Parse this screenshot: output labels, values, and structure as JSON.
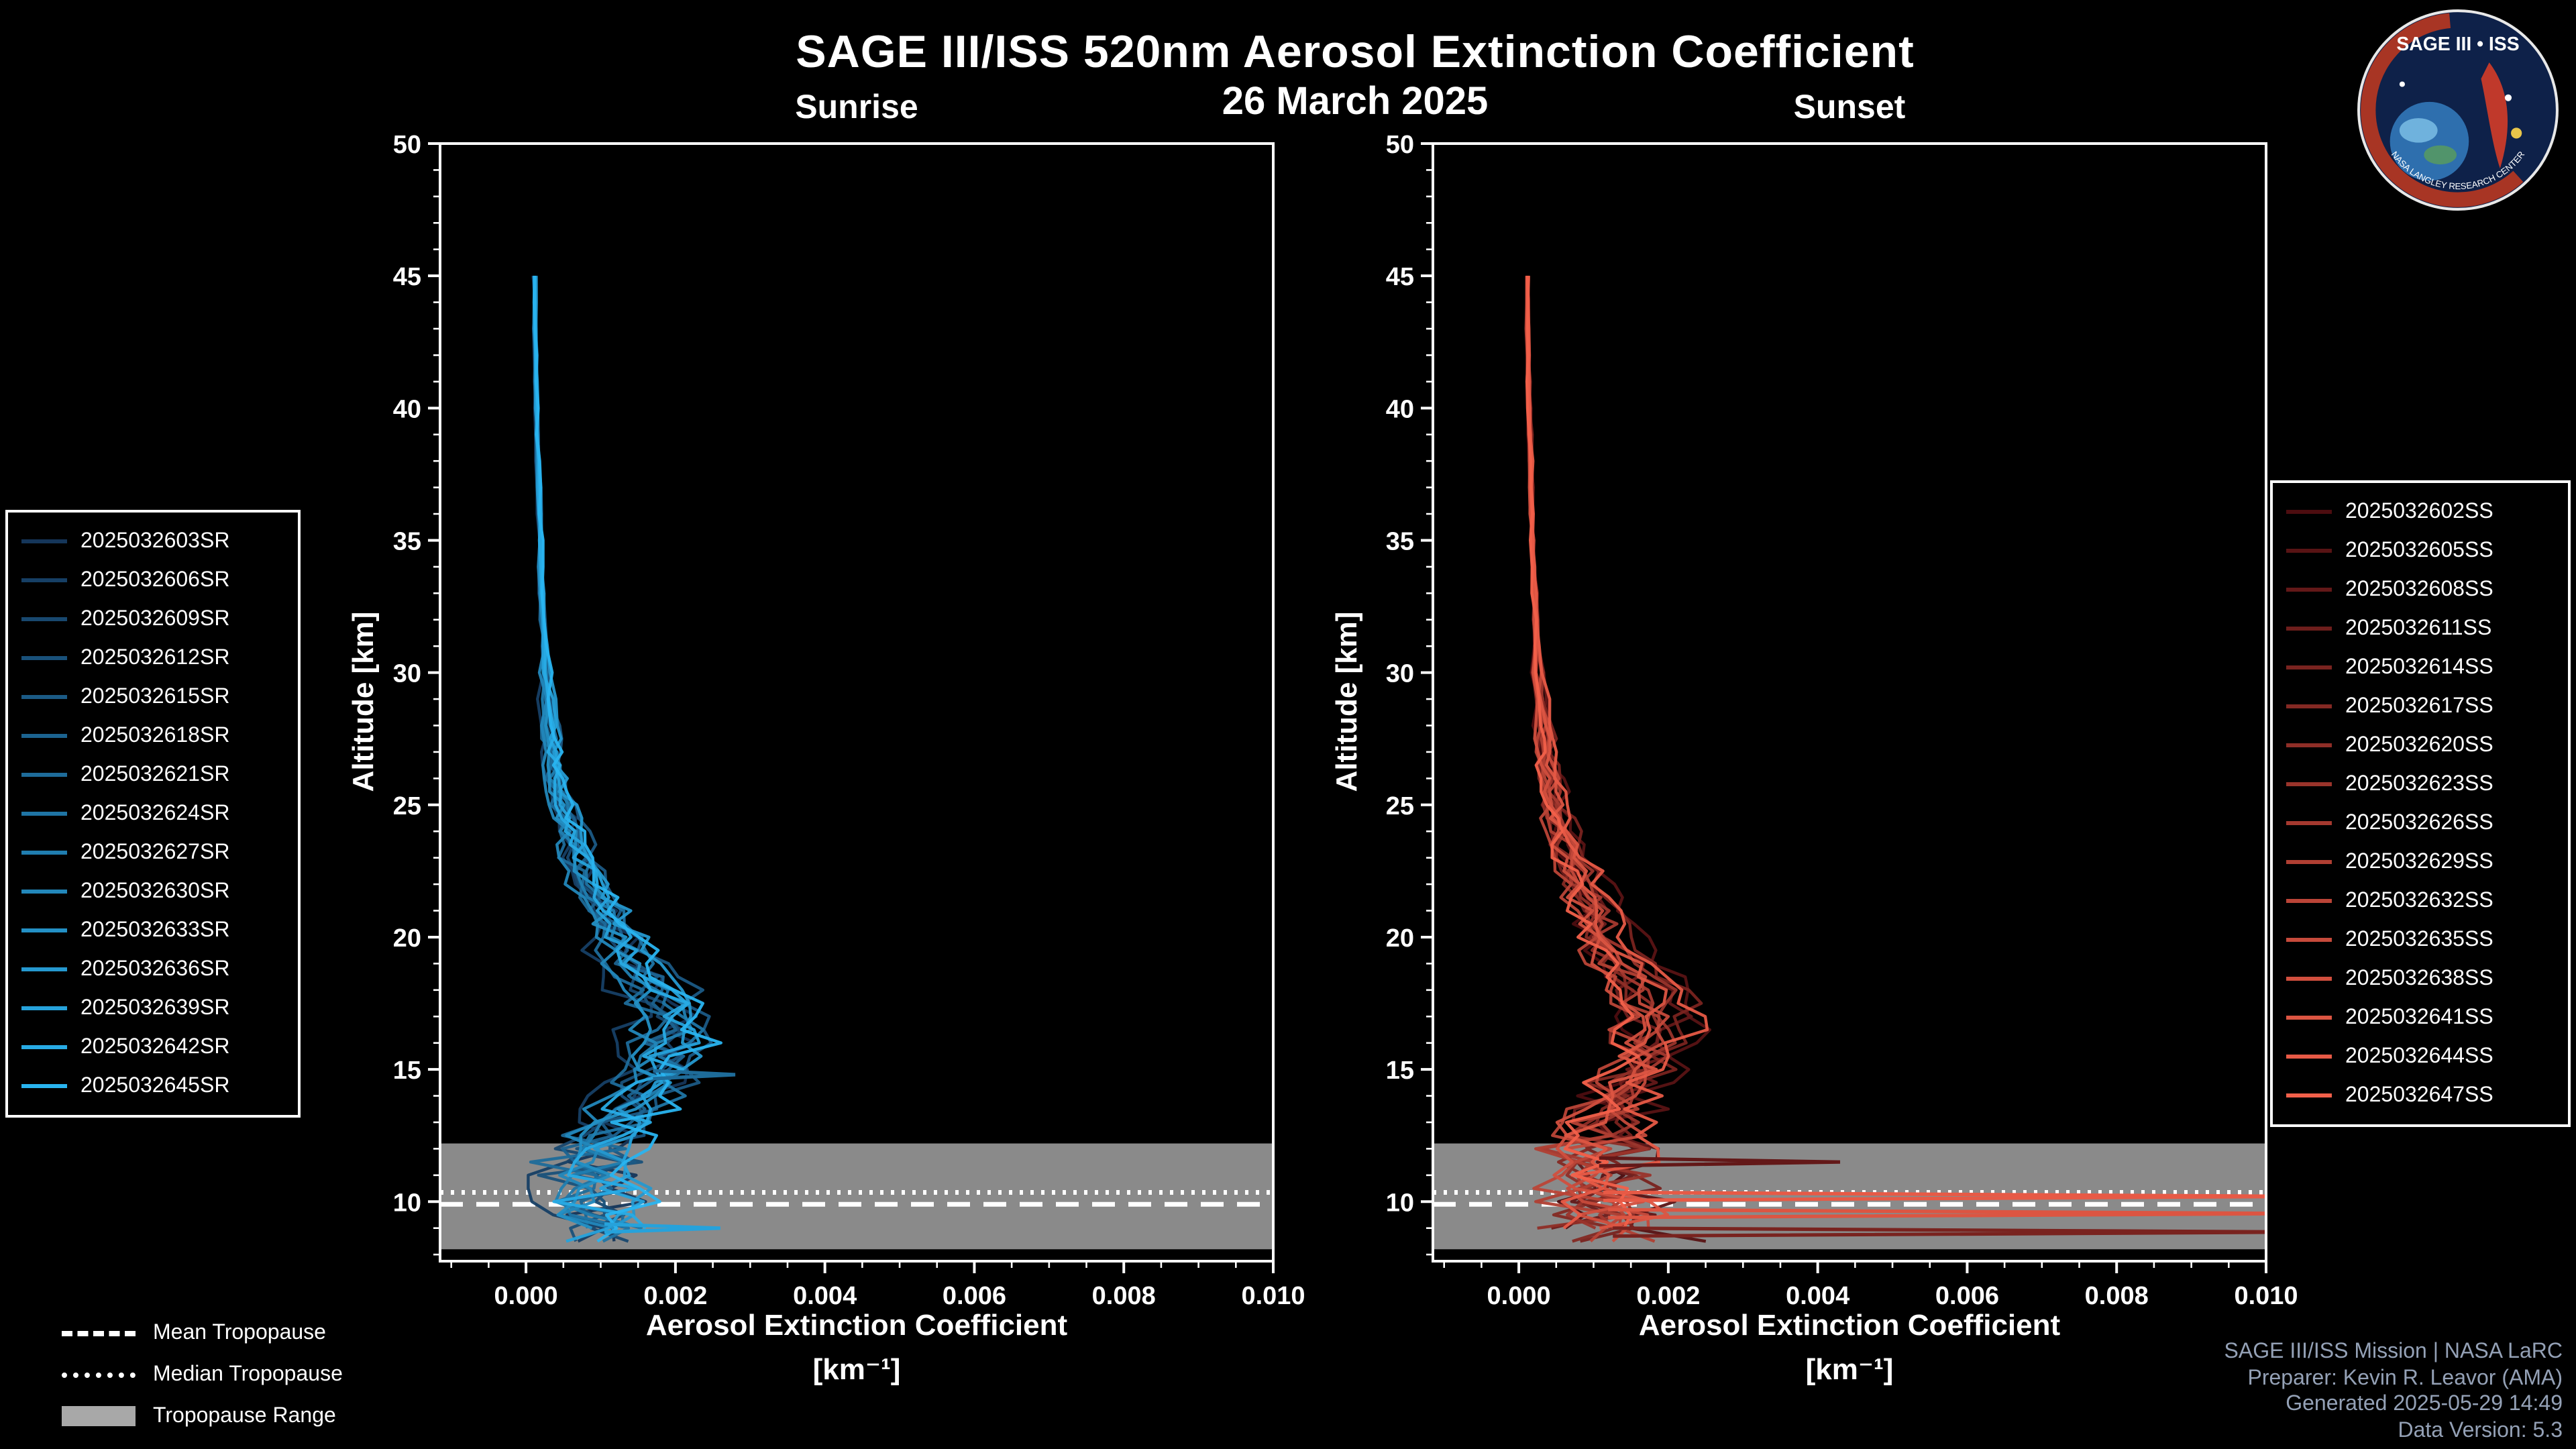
{
  "header": {
    "title": "SAGE III/ISS 520nm Aerosol Extinction Coefficient",
    "date": "26 March 2025"
  },
  "axes_text": {
    "ylabel": "Altitude [km]",
    "xlabel_line1": "Aerosol Extinction Coefficient",
    "xlabel_unit": "[km⁻¹]"
  },
  "tropopause_legend": {
    "items": [
      {
        "label": "Mean Tropopause",
        "style": "dashed"
      },
      {
        "label": "Median Tropopause",
        "style": "dotted"
      },
      {
        "label": "Tropopause Range",
        "style": "band"
      }
    ]
  },
  "footer": {
    "lines": [
      "SAGE III/ISS Mission | NASA LaRC",
      "Preparer: Kevin R. Leavor (AMA)",
      "Generated 2025-05-29 14:49",
      "Data Version: 5.3"
    ]
  },
  "logo": {
    "title": "SAGE III • ISS",
    "ring_text": "NASA LANGLEY RESEARCH CENTER"
  },
  "chart_data": {
    "type": "line",
    "title": "SAGE III/ISS 520nm Aerosol Extinction Coefficient",
    "subtitle": "26 March 2025",
    "xlabel": "Aerosol Extinction Coefficient [km⁻¹]",
    "ylabel": "Altitude [km]",
    "xlim": [
      -0.00115,
      0.01
    ],
    "ylim": [
      7.75,
      50
    ],
    "xticks": [
      0.0,
      0.002,
      0.004,
      0.006,
      0.008,
      0.01
    ],
    "xtick_labels": [
      "0.000",
      "0.002",
      "0.004",
      "0.006",
      "0.008",
      "0.010"
    ],
    "yticks": [
      10,
      15,
      20,
      25,
      30,
      35,
      40,
      45,
      50
    ],
    "grid": false,
    "altitudes_km": [
      45,
      44,
      43,
      42,
      41,
      40,
      39,
      38,
      37,
      36,
      35,
      34,
      33,
      32,
      31,
      30,
      29,
      28,
      27,
      26,
      25,
      24,
      23,
      22,
      21,
      20,
      19,
      18,
      17,
      16,
      15,
      14,
      13,
      12,
      11,
      10,
      9,
      8
    ],
    "tropopause": {
      "mean_km": 9.9,
      "median_km": 10.35,
      "range_km": [
        8.2,
        12.2
      ],
      "band_color": "#a8a8a8"
    },
    "panels": [
      {
        "id": "sunrise",
        "title": "Sunrise",
        "legend_position": "left",
        "color_dark": "#15365a",
        "color_light": "#29b4f0",
        "series_labels": [
          "2025032603SR",
          "2025032606SR",
          "2025032609SR",
          "2025032612SR",
          "2025032615SR",
          "2025032618SR",
          "2025032621SR",
          "2025032624SR",
          "2025032627SR",
          "2025032630SR",
          "2025032633SR",
          "2025032636SR",
          "2025032639SR",
          "2025032642SR",
          "2025032645SR"
        ],
        "mean_extinction": [
          0.00012,
          0.00012,
          0.00012,
          0.00013,
          0.00013,
          0.00014,
          0.00015,
          0.00016,
          0.00017,
          0.00018,
          0.00019,
          0.0002,
          0.00021,
          0.00022,
          0.00024,
          0.00026,
          0.00028,
          0.00031,
          0.00035,
          0.0004,
          0.00048,
          0.00058,
          0.0007,
          0.00084,
          0.001,
          0.00118,
          0.0014,
          0.00172,
          0.00195,
          0.0019,
          0.00175,
          0.0015,
          0.00118,
          0.00096,
          0.00086,
          0.00092,
          0.00105,
          0.00115
        ],
        "spread_extinction": [
          3e-05,
          3e-05,
          3e-05,
          3e-05,
          3e-05,
          4e-05,
          4e-05,
          4e-05,
          4e-05,
          4e-05,
          5e-05,
          5e-05,
          5e-05,
          5e-05,
          6e-05,
          6e-05,
          7e-05,
          8e-05,
          9e-05,
          0.0001,
          0.00012,
          0.00014,
          0.00016,
          0.00018,
          0.0002,
          0.00024,
          0.00028,
          0.0003,
          0.00032,
          0.00035,
          0.0004,
          0.00045,
          0.0005,
          0.00055,
          0.0006,
          0.00062,
          0.00065,
          0.00065
        ],
        "outliers": [
          {
            "altitude_km": 14.8,
            "extinction": 0.0028,
            "series_index": 6
          },
          {
            "altitude_km": 9.0,
            "extinction": 0.0026,
            "series_index": 12
          }
        ]
      },
      {
        "id": "sunset",
        "title": "Sunset",
        "legend_position": "right",
        "color_dark": "#4d0d10",
        "color_light": "#f2604a",
        "series_labels": [
          "2025032602SS",
          "2025032605SS",
          "2025032608SS",
          "2025032611SS",
          "2025032614SS",
          "2025032617SS",
          "2025032620SS",
          "2025032623SS",
          "2025032626SS",
          "2025032629SS",
          "2025032632SS",
          "2025032635SS",
          "2025032638SS",
          "2025032641SS",
          "2025032644SS",
          "2025032647SS"
        ],
        "mean_extinction": [
          0.00012,
          0.00012,
          0.00012,
          0.00013,
          0.00013,
          0.00014,
          0.00015,
          0.00016,
          0.00017,
          0.00018,
          0.00019,
          0.0002,
          0.00021,
          0.00023,
          0.00025,
          0.00027,
          0.0003,
          0.00033,
          0.00037,
          0.00043,
          0.0005,
          0.0006,
          0.00074,
          0.0009,
          0.00106,
          0.00125,
          0.00148,
          0.00175,
          0.00192,
          0.00185,
          0.00165,
          0.0014,
          0.0012,
          0.0011,
          0.00105,
          0.00115,
          0.00125,
          0.0013
        ],
        "spread_extinction": [
          3e-05,
          3e-05,
          3e-05,
          3e-05,
          3e-05,
          4e-05,
          4e-05,
          4e-05,
          4e-05,
          4e-05,
          5e-05,
          5e-05,
          5e-05,
          5e-05,
          6e-05,
          6e-05,
          7e-05,
          8e-05,
          9e-05,
          0.0001,
          0.00012,
          0.00014,
          0.00016,
          0.00018,
          0.0002,
          0.00024,
          0.00028,
          0.0003,
          0.00032,
          0.00035,
          0.0004,
          0.00045,
          0.0005,
          0.0006,
          0.00065,
          0.0007,
          0.00075,
          0.00075
        ],
        "outliers": [
          {
            "altitude_km": 11.5,
            "extinction": 0.0043,
            "series_index": 2
          },
          {
            "altitude_km": 10.2,
            "extinction": 0.0105,
            "series_index": 14
          },
          {
            "altitude_km": 9.55,
            "extinction": 0.0105,
            "series_index": 13
          },
          {
            "altitude_km": 8.85,
            "extinction": 0.0105,
            "series_index": 4
          }
        ]
      }
    ]
  }
}
